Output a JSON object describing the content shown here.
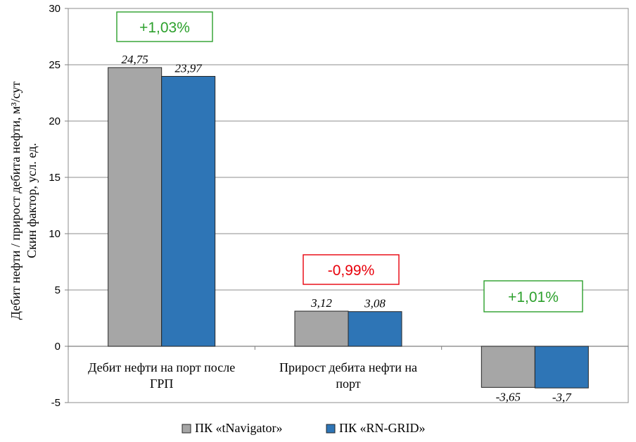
{
  "chart_data": {
    "type": "bar",
    "categories": [
      "Дебит нефти на порт после ГРП",
      "Прирост дебита нефти на порт",
      ""
    ],
    "category_lines": [
      [
        "Дебит нефти на порт после",
        "ГРП"
      ],
      [
        "Прирост дебита нефти на",
        "порт"
      ],
      []
    ],
    "series": [
      {
        "name": "ПК «tNavigator»",
        "values": [
          24.75,
          3.12,
          -3.65
        ],
        "labels": [
          "24,75",
          "3,12",
          "-3,65"
        ],
        "color": "#a6a6a6"
      },
      {
        "name": "ПК «RN-GRID»",
        "values": [
          23.97,
          3.08,
          -3.7
        ],
        "labels": [
          "23,97",
          "3,08",
          "-3,7"
        ],
        "color": "#2e75b6"
      }
    ],
    "ylabel_lines": [
      "Дебит нефти / прирост дебита нефти, м³/сут",
      "Скин фактор, усл. ед."
    ],
    "ylim": [
      -5,
      30
    ],
    "yticks": [
      -5,
      0,
      5,
      10,
      15,
      20,
      25,
      30
    ],
    "grid": true,
    "legend_position": "bottom",
    "annotations": [
      {
        "text": "+1,03%",
        "color": "#2ca02c"
      },
      {
        "text": "-0,99%",
        "color": "#e8000b"
      },
      {
        "text": "+1,01%",
        "color": "#2ca02c"
      }
    ]
  }
}
